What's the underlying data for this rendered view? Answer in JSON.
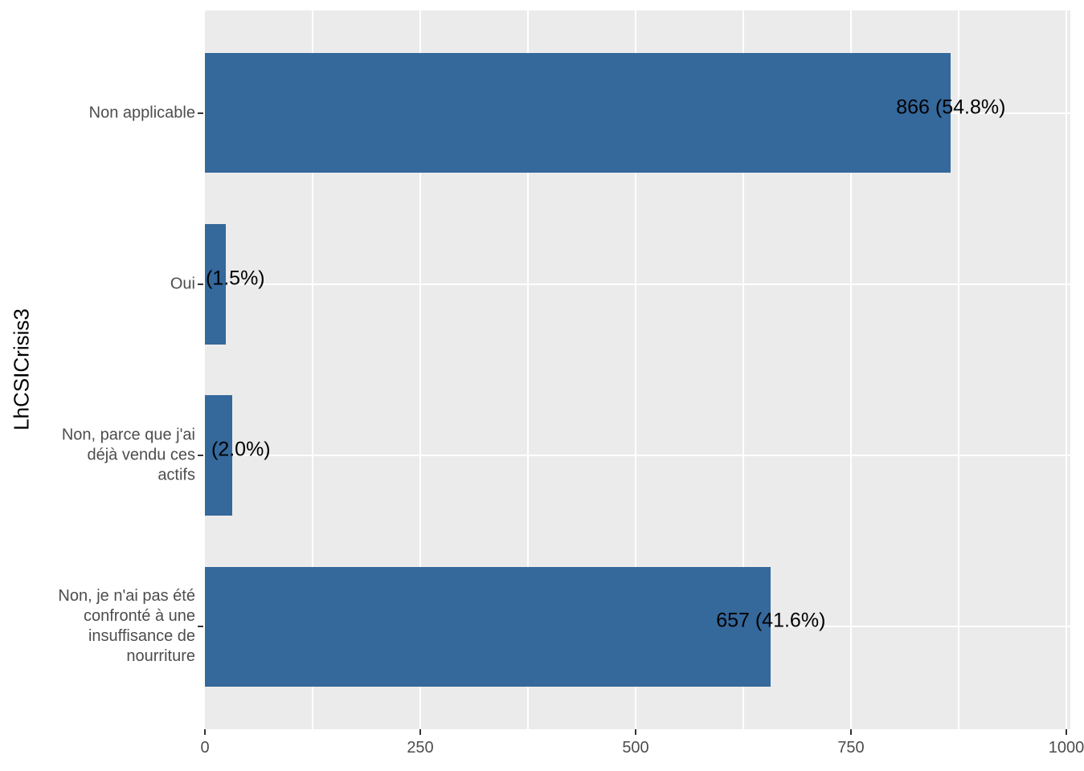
{
  "chart_data": {
    "type": "bar",
    "orientation": "horizontal",
    "title": "",
    "xlabel": "",
    "ylabel": "LhCSICrisis3",
    "legend_position": "none",
    "grid": "white major and minor vertical gridlines, white major horizontal gridlines on gray panel",
    "x_axis": {
      "tick_labels": [
        "0",
        "250",
        "500",
        "750",
        "1000"
      ],
      "tick_values": [
        0,
        250,
        500,
        750,
        1000
      ],
      "xlim": [
        0,
        1005
      ]
    },
    "categories": [
      "Non applicable",
      "Oui",
      "Non, parce que j'ai déjà vendu ces actifs",
      "Non, je n'ai pas été confronté à une insuffisance de nourriture"
    ],
    "values": [
      866,
      24,
      32,
      657
    ],
    "rows": [
      {
        "category_lines": [
          "Non applicable"
        ],
        "value": 866,
        "bar_label": "866 (54.8%)",
        "label_position": "bar-end",
        "label_offset": 0
      },
      {
        "category_lines": [
          "Oui"
        ],
        "value": 24,
        "bar_label": "(1.5%)",
        "label_position": "panel-left",
        "label_offset": 1
      },
      {
        "category_lines": [
          "Non, parce que j'ai",
          "déjà vendu ces",
          "actifs"
        ],
        "value": 32,
        "bar_label": "(2.0%)",
        "label_position": "panel-left",
        "label_offset": 8
      },
      {
        "category_lines": [
          "Non, je n'ai pas été",
          "confronté à une",
          "insuffisance de",
          "nourriture"
        ],
        "value": 657,
        "bar_label": "657 (41.6%)",
        "label_position": "bar-end",
        "label_offset": 0
      }
    ]
  },
  "style": {
    "bar_color": "#35689B",
    "panel_background": "#EBEBEB",
    "grid_color": "#FFFFFF",
    "axis_text_color": "#4D4D4D",
    "tick_mark_color": "#333333",
    "bar_label_color": "#000000",
    "figure_background": "#FFFFFF"
  }
}
